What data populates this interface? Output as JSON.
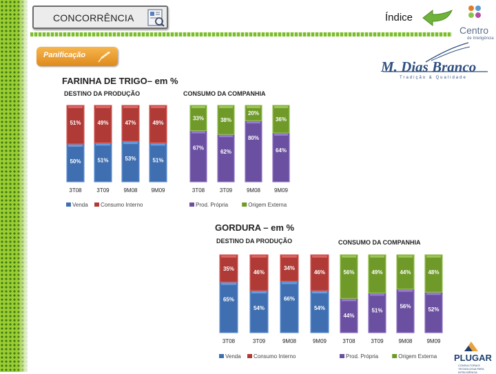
{
  "header": {
    "section_title": "CONCORRÊNCIA",
    "index_link": "Índice",
    "brand_logo_name": "Centro",
    "brand_logo_sub": "de Inteligência",
    "company_logo_name": "M. Dias Branco",
    "company_logo_tagline": "Tradição & Qualidade",
    "category_tab": "Panificação",
    "footer_logo_name": "PLUGAR",
    "footer_logo_sub": "CONSULTORIA E TECNOLOGIA PARA INTELIGÊNCIA"
  },
  "icons": [
    "document-icon",
    "back-arrow-icon",
    "centro-logo-icon",
    "wheat-icon",
    "plugar-logo-icon"
  ],
  "colors": {
    "venda": "#3f6fb0",
    "consumo_interno": "#b03a36",
    "prod_propria": "#6b4fa0",
    "origem_externa": "#6f9a2a",
    "sidebar_green": "#9acd32",
    "category_orange": "#e9a23b"
  },
  "chart_data": [
    {
      "type": "bar",
      "stacked": true,
      "title": "FARINHA DE TRIGO– em %",
      "subtitle": "DESTINO DA PRODUÇÃO",
      "categories": [
        "3T08",
        "3T09",
        "9M08",
        "9M09"
      ],
      "series": [
        {
          "name": "Venda",
          "values": [
            50,
            51,
            53,
            51
          ]
        },
        {
          "name": "Consumo Interno",
          "values": [
            51,
            49,
            47,
            49
          ]
        }
      ],
      "legend_position": "bottom"
    },
    {
      "type": "bar",
      "stacked": true,
      "title": "FARINHA DE TRIGO– em %",
      "subtitle": "CONSUMO DA COMPANHIA",
      "categories": [
        "3T08",
        "3T09",
        "9M08",
        "9M09"
      ],
      "series": [
        {
          "name": "Prod. Própria",
          "values": [
            67,
            62,
            80,
            64
          ]
        },
        {
          "name": "Origem Externa",
          "values": [
            33,
            38,
            20,
            36
          ]
        }
      ],
      "legend_position": "bottom"
    },
    {
      "type": "bar",
      "stacked": true,
      "title": "GORDURA – em %",
      "subtitle": "DESTINO DA PRODUÇÃO",
      "categories": [
        "3T08",
        "3T09",
        "9M08",
        "9M09"
      ],
      "series": [
        {
          "name": "Venda",
          "values": [
            65,
            54,
            66,
            54
          ]
        },
        {
          "name": "Consumo Interno",
          "values": [
            35,
            46,
            34,
            46
          ]
        }
      ],
      "legend_position": "bottom"
    },
    {
      "type": "bar",
      "stacked": true,
      "title": "GORDURA – em %",
      "subtitle": "CONSUMO DA COMPANHIA",
      "categories": [
        "3T08",
        "3T09",
        "9M08",
        "9M09"
      ],
      "series": [
        {
          "name": "Prod. Própria",
          "values": [
            44,
            51,
            56,
            52
          ]
        },
        {
          "name": "Origem Externa",
          "values": [
            56,
            49,
            44,
            48
          ]
        }
      ],
      "legend_position": "bottom"
    }
  ]
}
